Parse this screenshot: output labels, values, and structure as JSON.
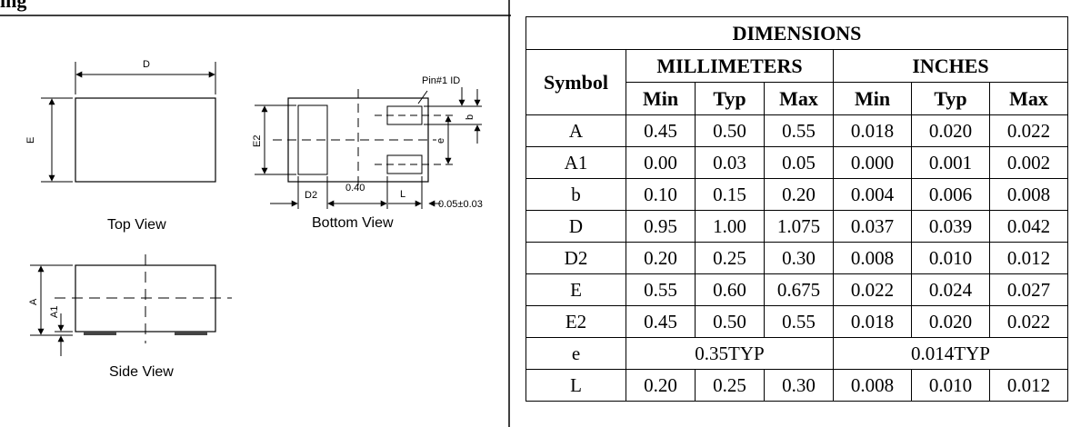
{
  "header": {
    "title_fragment": "ing"
  },
  "drawing": {
    "views": {
      "top": "Top View",
      "bottom": "Bottom View",
      "side": "Side View"
    },
    "labels": {
      "D": "D",
      "E": "E",
      "E2": "E2",
      "D2": "D2",
      "pitch": "0.40",
      "L": "L",
      "gap": "0.05±0.03",
      "pin1": "Pin#1 ID",
      "b": "b",
      "e": "e",
      "A": "A",
      "A1": "A1"
    }
  },
  "table": {
    "title": "DIMENSIONS",
    "symbol_header": "Symbol",
    "groups": [
      "MILLIMETERS",
      "INCHES"
    ],
    "subheaders": [
      "Min",
      "Typ",
      "Max",
      "Min",
      "Typ",
      "Max"
    ],
    "rows": [
      {
        "symbol": "A",
        "values": [
          "0.45",
          "0.50",
          "0.55",
          "0.018",
          "0.020",
          "0.022"
        ]
      },
      {
        "symbol": "A1",
        "values": [
          "0.00",
          "0.03",
          "0.05",
          "0.000",
          "0.001",
          "0.002"
        ]
      },
      {
        "symbol": "b",
        "values": [
          "0.10",
          "0.15",
          "0.20",
          "0.004",
          "0.006",
          "0.008"
        ]
      },
      {
        "symbol": "D",
        "values": [
          "0.95",
          "1.00",
          "1.075",
          "0.037",
          "0.039",
          "0.042"
        ]
      },
      {
        "symbol": "D2",
        "values": [
          "0.20",
          "0.25",
          "0.30",
          "0.008",
          "0.010",
          "0.012"
        ]
      },
      {
        "symbol": "E",
        "values": [
          "0.55",
          "0.60",
          "0.675",
          "0.022",
          "0.024",
          "0.027"
        ]
      },
      {
        "symbol": "E2",
        "values": [
          "0.45",
          "0.50",
          "0.55",
          "0.018",
          "0.020",
          "0.022"
        ]
      },
      {
        "symbol": "e",
        "typ_mm": "0.35TYP",
        "typ_in": "0.014TYP"
      },
      {
        "symbol": "L",
        "values": [
          "0.20",
          "0.25",
          "0.30",
          "0.008",
          "0.010",
          "0.012"
        ]
      }
    ]
  }
}
